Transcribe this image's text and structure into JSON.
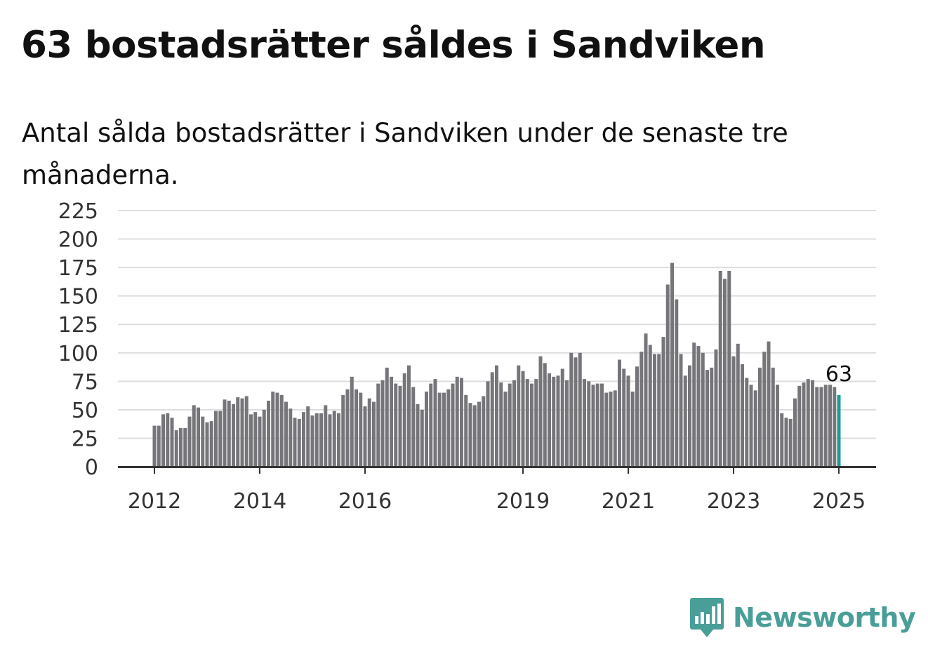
{
  "title": "63 bostadsrätter såldes i Sandviken",
  "subtitle": "Antal sålda bostadsrätter i Sandviken under de senaste tre månaderna.",
  "brand": {
    "name": "Newsworthy",
    "icon": "bar-chart-speech-bubble-icon",
    "color": "#4a9e98"
  },
  "chart_data": {
    "type": "bar",
    "start": "2012-01",
    "ylim": [
      0,
      225
    ],
    "yticks": [
      0,
      25,
      50,
      75,
      100,
      125,
      150,
      175,
      200,
      225
    ],
    "xticks": [
      {
        "label": "2012",
        "index": 0
      },
      {
        "label": "2014",
        "index": 24
      },
      {
        "label": "2016",
        "index": 48
      },
      {
        "label": "2019",
        "index": 84
      },
      {
        "label": "2021",
        "index": 108
      },
      {
        "label": "2023",
        "index": 132
      },
      {
        "label": "2025",
        "index": 156
      }
    ],
    "bar_color": "#75757a",
    "highlight_color": "#1a9e95",
    "highlight_label": "63",
    "values": [
      36,
      36,
      46,
      47,
      43,
      32,
      34,
      34,
      44,
      54,
      52,
      44,
      39,
      40,
      49,
      49,
      59,
      58,
      55,
      61,
      60,
      62,
      46,
      48,
      44,
      50,
      58,
      66,
      65,
      63,
      57,
      51,
      43,
      42,
      48,
      53,
      45,
      47,
      47,
      54,
      46,
      49,
      47,
      63,
      68,
      79,
      68,
      65,
      53,
      60,
      57,
      73,
      76,
      87,
      79,
      73,
      71,
      82,
      89,
      70,
      55,
      50,
      66,
      73,
      77,
      65,
      65,
      68,
      73,
      79,
      78,
      63,
      56,
      54,
      57,
      62,
      75,
      83,
      89,
      74,
      66,
      73,
      76,
      89,
      84,
      77,
      73,
      77,
      97,
      91,
      82,
      79,
      80,
      86,
      76,
      100,
      96,
      100,
      77,
      75,
      72,
      73,
      73,
      65,
      66,
      67,
      94,
      86,
      80,
      66,
      88,
      101,
      117,
      107,
      99,
      99,
      114,
      160,
      179,
      147,
      99,
      80,
      89,
      109,
      106,
      100,
      85,
      87,
      103,
      172,
      165,
      172,
      97,
      108,
      90,
      78,
      72,
      67,
      87,
      101,
      110,
      87,
      72,
      47,
      43,
      42,
      60,
      71,
      74,
      77,
      76,
      70,
      70,
      72,
      72,
      70,
      63
    ]
  }
}
